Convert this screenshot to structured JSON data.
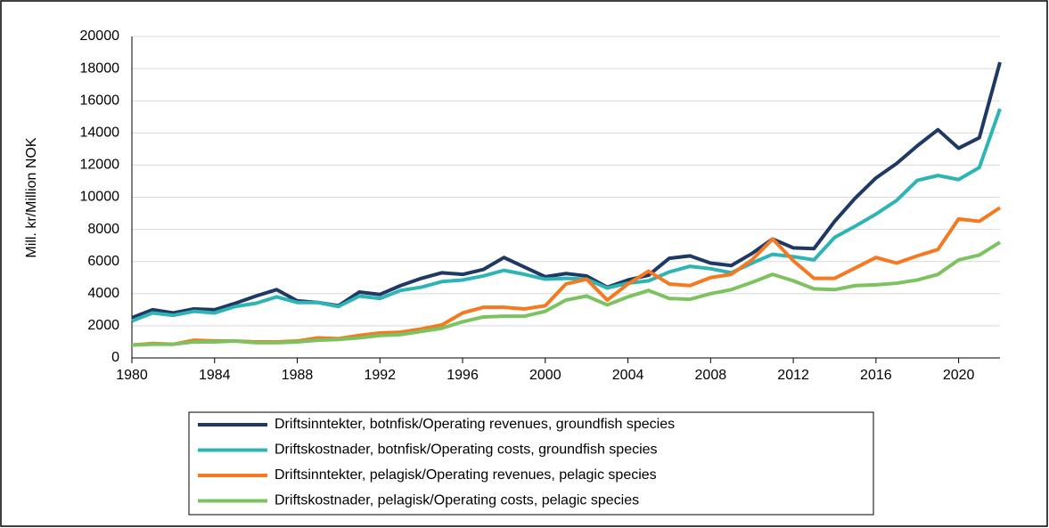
{
  "chart_data": {
    "type": "line",
    "y_label": "Mill. kr/Million NOK",
    "x": [
      1980,
      1981,
      1982,
      1983,
      1984,
      1985,
      1986,
      1987,
      1988,
      1989,
      1990,
      1991,
      1992,
      1993,
      1994,
      1995,
      1996,
      1997,
      1998,
      1999,
      2000,
      2001,
      2002,
      2003,
      2004,
      2005,
      2006,
      2007,
      2008,
      2009,
      2010,
      2011,
      2012,
      2013,
      2014,
      2015,
      2016,
      2017,
      2018,
      2019,
      2020,
      2021,
      2022
    ],
    "xlim": [
      1980,
      2022
    ],
    "xticks": [
      1980,
      1984,
      1988,
      1992,
      1996,
      2000,
      2004,
      2008,
      2012,
      2016,
      2020
    ],
    "ylim": [
      0,
      20000
    ],
    "yticks": [
      0,
      2000,
      4000,
      6000,
      8000,
      10000,
      12000,
      14000,
      16000,
      18000,
      20000
    ],
    "grid": true,
    "legend": "bottom",
    "series": [
      {
        "name": "Driftsinntekter, botnfisk/Operating revenues, groundfish species",
        "color": "#1f3864",
        "values": [
          2500,
          3000,
          2800,
          3050,
          3000,
          3400,
          3850,
          4250,
          3550,
          3450,
          3250,
          4100,
          3950,
          4500,
          4950,
          5300,
          5200,
          5500,
          6250,
          5650,
          5050,
          5250,
          5100,
          4400,
          4850,
          5150,
          6200,
          6350,
          5900,
          5750,
          6500,
          7400,
          6850,
          6800,
          8500,
          9950,
          11200,
          12100,
          13200,
          14200,
          13050,
          13700,
          18400
        ]
      },
      {
        "name": "Driftskostnader, botnfisk/Operating costs, groundfish species",
        "color": "#2eb4b4",
        "values": [
          2300,
          2800,
          2650,
          2900,
          2800,
          3200,
          3400,
          3800,
          3450,
          3450,
          3200,
          3850,
          3700,
          4200,
          4400,
          4750,
          4850,
          5100,
          5450,
          5200,
          4900,
          4950,
          4900,
          4350,
          4650,
          4800,
          5350,
          5700,
          5550,
          5300,
          5900,
          6450,
          6300,
          6100,
          7500,
          8200,
          8950,
          9800,
          11050,
          11350,
          11100,
          11850,
          15500
        ]
      },
      {
        "name": "Driftsinntekter, pelagisk/Operating revenues, pelagic species",
        "color": "#f47920",
        "values": [
          800,
          900,
          850,
          1100,
          1050,
          1050,
          1000,
          1000,
          1050,
          1250,
          1200,
          1400,
          1550,
          1600,
          1800,
          2050,
          2800,
          3150,
          3150,
          3050,
          3250,
          4600,
          4900,
          3600,
          4600,
          5400,
          4600,
          4500,
          5000,
          5200,
          6100,
          7400,
          6050,
          4950,
          4950,
          5600,
          6250,
          5900,
          6350,
          6750,
          8650,
          8500,
          9350
        ]
      },
      {
        "name": "Driftskostnader, pelagisk/Operating costs, pelagic species",
        "color": "#7cc360",
        "values": [
          800,
          850,
          850,
          1000,
          1000,
          1050,
          950,
          950,
          1000,
          1100,
          1150,
          1250,
          1400,
          1450,
          1650,
          1850,
          2250,
          2550,
          2600,
          2600,
          2900,
          3600,
          3850,
          3300,
          3800,
          4200,
          3700,
          3650,
          4000,
          4250,
          4700,
          5200,
          4800,
          4300,
          4250,
          4500,
          4550,
          4650,
          4850,
          5200,
          6100,
          6400,
          7200
        ]
      }
    ]
  }
}
